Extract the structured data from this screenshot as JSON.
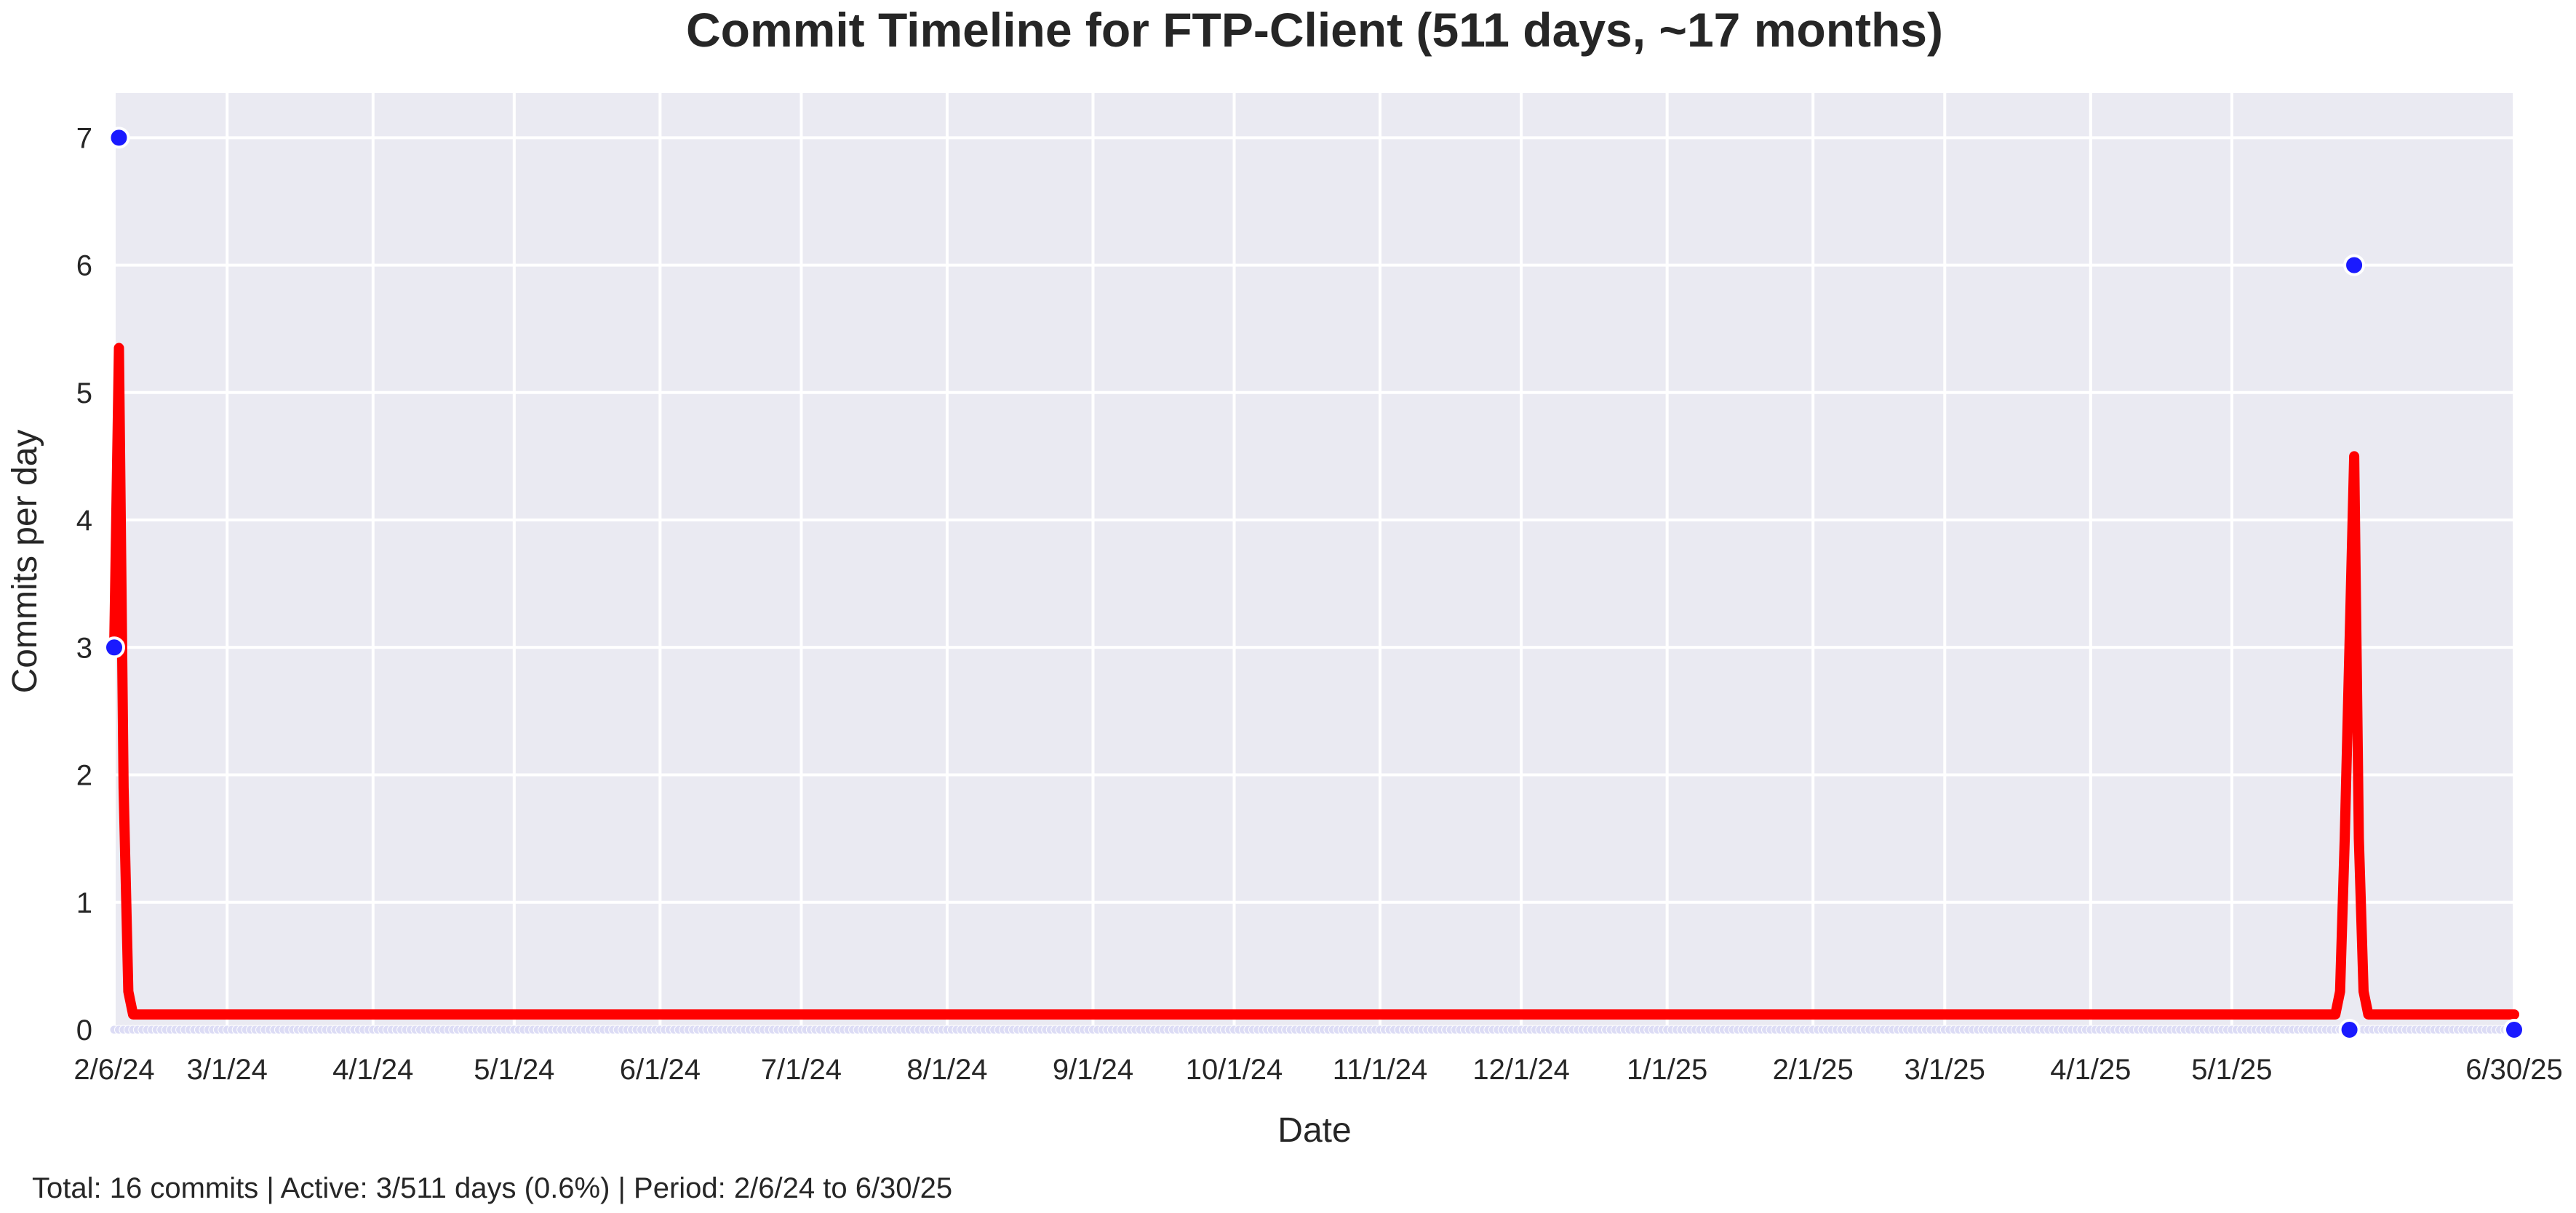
{
  "chart_data": {
    "type": "line",
    "title": "Commit Timeline for FTP-Client (511 days, ~17 months)",
    "xlabel": "Date",
    "ylabel": "Commits per day",
    "xlim": [
      "2024-02-06",
      "2025-06-30"
    ],
    "ylim": [
      0,
      7.35
    ],
    "grid": true,
    "x_tick_labels": [
      {
        "date": "2024-02-06",
        "label": "2/6/24"
      },
      {
        "date": "2024-03-01",
        "label": "3/1/24"
      },
      {
        "date": "2024-04-01",
        "label": "4/1/24"
      },
      {
        "date": "2024-05-01",
        "label": "5/1/24"
      },
      {
        "date": "2024-06-01",
        "label": "6/1/24"
      },
      {
        "date": "2024-07-01",
        "label": "7/1/24"
      },
      {
        "date": "2024-08-01",
        "label": "8/1/24"
      },
      {
        "date": "2024-09-01",
        "label": "9/1/24"
      },
      {
        "date": "2024-10-01",
        "label": "10/1/24"
      },
      {
        "date": "2024-11-01",
        "label": "11/1/24"
      },
      {
        "date": "2024-12-01",
        "label": "12/1/24"
      },
      {
        "date": "2025-01-01",
        "label": "1/1/25"
      },
      {
        "date": "2025-02-01",
        "label": "2/1/25"
      },
      {
        "date": "2025-03-01",
        "label": "3/1/25"
      },
      {
        "date": "2025-04-01",
        "label": "4/1/25"
      },
      {
        "date": "2025-05-01",
        "label": "5/1/25"
      },
      {
        "date": "2025-06-30",
        "label": "6/30/25"
      }
    ],
    "y_ticks": [
      0,
      1,
      2,
      3,
      4,
      5,
      6,
      7
    ],
    "series": [
      {
        "kind": "scatter",
        "color": "#1a1aff",
        "points": [
          {
            "x": "2024-02-06",
            "y": 3
          },
          {
            "x": "2024-02-07",
            "y": 7
          },
          {
            "x": "2025-05-26",
            "y": 0
          },
          {
            "x": "2025-05-27",
            "y": 6
          },
          {
            "x": "2025-06-30",
            "y": 0
          }
        ]
      },
      {
        "kind": "line",
        "color": "#ff0000",
        "points": [
          {
            "x": "2024-02-06",
            "y": 3
          },
          {
            "x": "2024-02-07",
            "y": 5.35
          },
          {
            "x": "2024-02-08",
            "y": 1.9
          },
          {
            "x": "2024-02-09",
            "y": 0.3
          },
          {
            "x": "2024-02-10",
            "y": 0.12
          },
          {
            "x": "2025-05-23",
            "y": 0.12
          },
          {
            "x": "2025-05-24",
            "y": 0.3
          },
          {
            "x": "2025-05-25",
            "y": 1.5
          },
          {
            "x": "2025-05-27",
            "y": 4.5
          },
          {
            "x": "2025-05-28",
            "y": 1.5
          },
          {
            "x": "2025-05-29",
            "y": 0.3
          },
          {
            "x": "2025-05-30",
            "y": 0.12
          },
          {
            "x": "2025-06-30",
            "y": 0.12
          }
        ]
      }
    ],
    "footer": "Total: 16 commits | Active: 3/511 days (0.6%) | Period: 2/6/24 to 6/30/25"
  }
}
